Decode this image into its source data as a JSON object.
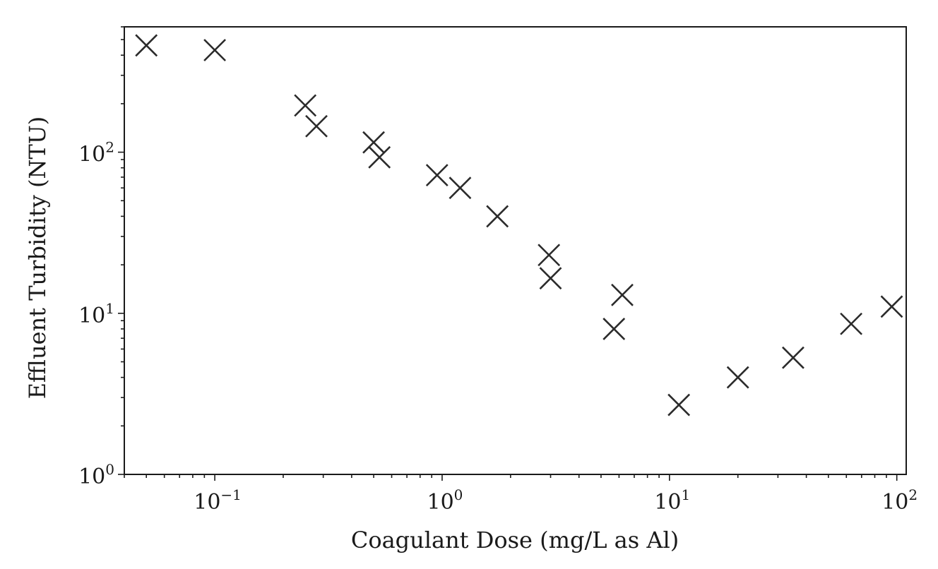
{
  "chart_data": {
    "type": "scatter",
    "xlabel": "Coagulant Dose (mg/L as Al)",
    "ylabel": "Effluent Turbidity (NTU)",
    "xscale": "log",
    "yscale": "log",
    "xlim": [
      0.04,
      110
    ],
    "ylim": [
      1,
      600
    ],
    "marker": "x",
    "marker_color": "#2b2b2b",
    "grid": false,
    "x_ticks": [
      {
        "base": "10",
        "exp": "−1",
        "value": 0.1
      },
      {
        "base": "10",
        "exp": "0",
        "value": 1
      },
      {
        "base": "10",
        "exp": "1",
        "value": 10
      },
      {
        "base": "10",
        "exp": "2",
        "value": 100
      }
    ],
    "y_ticks": [
      {
        "base": "10",
        "exp": "0",
        "value": 1
      },
      {
        "base": "10",
        "exp": "1",
        "value": 10
      },
      {
        "base": "10",
        "exp": "2",
        "value": 100
      }
    ],
    "points": [
      {
        "x": 0.05,
        "y": 460
      },
      {
        "x": 0.1,
        "y": 430
      },
      {
        "x": 0.25,
        "y": 195
      },
      {
        "x": 0.28,
        "y": 145
      },
      {
        "x": 0.5,
        "y": 115
      },
      {
        "x": 0.53,
        "y": 93
      },
      {
        "x": 0.95,
        "y": 72
      },
      {
        "x": 1.2,
        "y": 60
      },
      {
        "x": 1.75,
        "y": 40
      },
      {
        "x": 2.95,
        "y": 23
      },
      {
        "x": 3.0,
        "y": 16.5
      },
      {
        "x": 5.7,
        "y": 8
      },
      {
        "x": 6.2,
        "y": 13
      },
      {
        "x": 11,
        "y": 2.7
      },
      {
        "x": 20,
        "y": 4
      },
      {
        "x": 35,
        "y": 5.3
      },
      {
        "x": 63,
        "y": 8.6
      },
      {
        "x": 95,
        "y": 11
      }
    ]
  }
}
